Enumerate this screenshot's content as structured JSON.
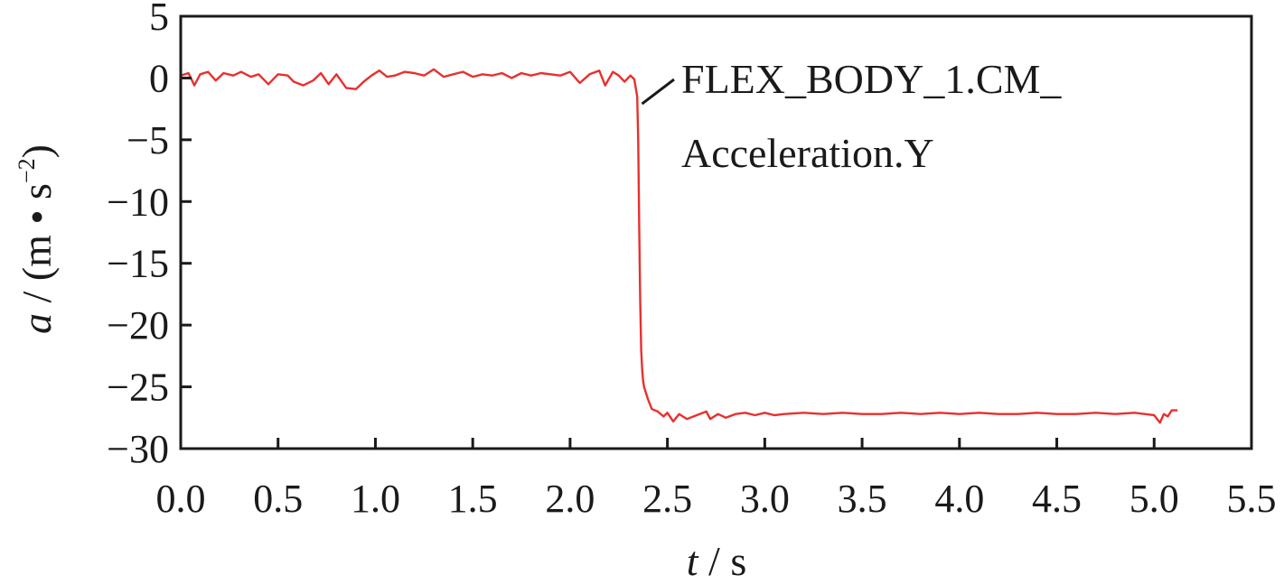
{
  "chart_data": {
    "type": "line",
    "xlabel_var": "t",
    "xlabel_unit": " / s",
    "ylabel_var": "a",
    "ylabel_unit": " / (m • s",
    "ylabel_sup": "−2",
    "ylabel_close": ")",
    "xlim": [
      0,
      5.5
    ],
    "ylim": [
      -30,
      5
    ],
    "x_ticks": [
      "0.0",
      "0.5",
      "1.0",
      "1.5",
      "2.0",
      "2.5",
      "3.0",
      "3.5",
      "4.0",
      "4.5",
      "5.0",
      "5.5"
    ],
    "y_ticks": [
      "5",
      "0",
      "−5",
      "−10",
      "−15",
      "−20",
      "−25",
      "−30"
    ],
    "grid": false,
    "annotation": {
      "line1": "FLEX_BODY_1.CM_",
      "line2": "Acceleration.Y",
      "points_to": {
        "x": 2.36,
        "y": -1.8
      }
    },
    "series": [
      {
        "name": "FLEX_BODY_1.CM_Acceleration.Y",
        "color": "#e8302e",
        "x": [
          0.0,
          0.04,
          0.07,
          0.1,
          0.14,
          0.18,
          0.22,
          0.27,
          0.31,
          0.36,
          0.4,
          0.45,
          0.5,
          0.55,
          0.58,
          0.63,
          0.68,
          0.72,
          0.76,
          0.8,
          0.85,
          0.9,
          0.94,
          0.98,
          1.02,
          1.06,
          1.1,
          1.15,
          1.2,
          1.25,
          1.3,
          1.35,
          1.4,
          1.45,
          1.5,
          1.55,
          1.6,
          1.65,
          1.7,
          1.75,
          1.8,
          1.85,
          1.9,
          1.95,
          2.0,
          2.05,
          2.1,
          2.15,
          2.18,
          2.22,
          2.25,
          2.28,
          2.31,
          2.33,
          2.345,
          2.35,
          2.355,
          2.36,
          2.365,
          2.37,
          2.375,
          2.38,
          2.39,
          2.4,
          2.42,
          2.45,
          2.48,
          2.5,
          2.53,
          2.56,
          2.6,
          2.65,
          2.7,
          2.72,
          2.76,
          2.8,
          2.85,
          2.9,
          2.95,
          3.0,
          3.05,
          3.1,
          3.2,
          3.3,
          3.4,
          3.5,
          3.6,
          3.7,
          3.8,
          3.9,
          4.0,
          4.1,
          4.2,
          4.3,
          4.4,
          4.5,
          4.6,
          4.7,
          4.8,
          4.9,
          5.0,
          5.03,
          5.05,
          5.07,
          5.09,
          5.12
        ],
        "y": [
          0.2,
          0.4,
          -0.6,
          0.3,
          0.5,
          -0.2,
          0.4,
          0.2,
          0.5,
          0.1,
          0.3,
          -0.5,
          0.3,
          0.2,
          -0.3,
          -0.6,
          -0.2,
          0.4,
          -0.5,
          0.3,
          -0.8,
          -0.9,
          -0.3,
          0.2,
          0.6,
          0.1,
          0.2,
          0.5,
          0.4,
          0.2,
          0.7,
          0.1,
          0.3,
          0.5,
          0.1,
          0.3,
          0.2,
          0.4,
          0.0,
          0.4,
          0.2,
          0.4,
          0.3,
          0.2,
          0.5,
          -0.4,
          0.3,
          0.6,
          -0.6,
          0.5,
          0.2,
          -0.3,
          0.2,
          -0.1,
          -1.5,
          -5.0,
          -12.0,
          -18.0,
          -22.0,
          -23.5,
          -24.5,
          -25.0,
          -25.5,
          -26.0,
          -26.8,
          -27.0,
          -27.4,
          -27.1,
          -27.8,
          -27.2,
          -27.6,
          -27.3,
          -27.0,
          -27.6,
          -27.2,
          -27.5,
          -27.2,
          -27.1,
          -27.3,
          -27.1,
          -27.3,
          -27.2,
          -27.1,
          -27.2,
          -27.1,
          -27.2,
          -27.2,
          -27.1,
          -27.2,
          -27.1,
          -27.2,
          -27.1,
          -27.2,
          -27.2,
          -27.1,
          -27.2,
          -27.2,
          -27.1,
          -27.2,
          -27.1,
          -27.3,
          -27.9,
          -27.2,
          -27.4,
          -26.9,
          -26.9
        ]
      }
    ]
  }
}
